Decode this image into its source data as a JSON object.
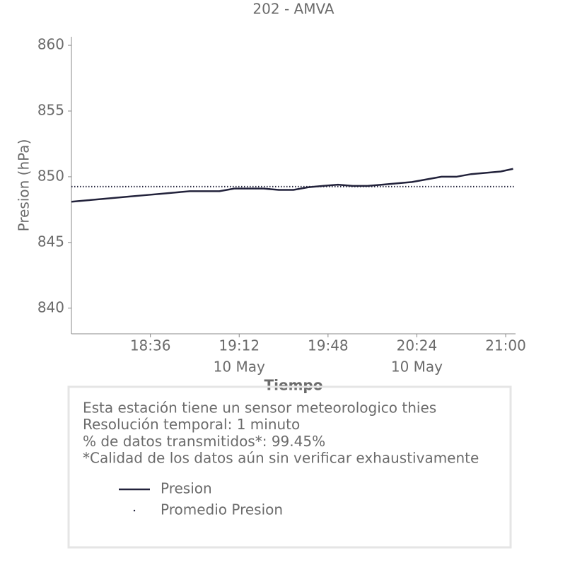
{
  "chart_data": {
    "type": "line",
    "title": "202 - AMVA",
    "xlabel": "Tiempo",
    "ylabel": "Presion (hPa)",
    "x": [
      "18:04",
      "18:10",
      "18:16",
      "18:22",
      "18:28",
      "18:34",
      "18:40",
      "18:46",
      "18:52",
      "18:58",
      "19:04",
      "19:10",
      "19:16",
      "19:22",
      "19:28",
      "19:34",
      "19:40",
      "19:46",
      "19:52",
      "19:58",
      "20:04",
      "20:10",
      "20:16",
      "20:22",
      "20:28",
      "20:34",
      "20:40",
      "20:46",
      "20:52",
      "20:58",
      "21:03"
    ],
    "series": [
      {
        "name": "Presion",
        "color": "#22223b",
        "values": [
          848.1,
          848.2,
          848.3,
          848.4,
          848.5,
          848.6,
          848.7,
          848.8,
          848.9,
          848.9,
          848.9,
          849.1,
          849.1,
          849.1,
          849.0,
          849.0,
          849.2,
          849.3,
          849.4,
          849.3,
          849.3,
          849.4,
          849.5,
          849.6,
          849.8,
          850.0,
          850.0,
          850.2,
          850.3,
          850.4,
          850.6
        ]
      },
      {
        "name": "Promedio Presion",
        "color": "#22223b",
        "value": 849.25
      }
    ],
    "xlim": [
      "18:04",
      "21:04"
    ],
    "xticks": [
      {
        "value": "18:36",
        "label": [
          "18:36"
        ]
      },
      {
        "value": "19:12",
        "label": [
          "19:12",
          "10 May"
        ]
      },
      {
        "value": "19:48",
        "label": [
          "19:48"
        ]
      },
      {
        "value": "20:24",
        "label": [
          "20:24",
          "10 May"
        ]
      },
      {
        "value": "21:00",
        "label": [
          "21:00"
        ]
      }
    ],
    "ylim": [
      838.05,
      860.65
    ],
    "yticks": [
      840,
      845,
      850,
      855,
      860
    ],
    "info": [
      "Esta estación tiene un sensor meteorologico thies",
      "Resolución temporal: 1 minuto",
      "% de datos transmitidos*: 99.45%",
      "*Calidad de los datos aún sin verificar exhaustivamente"
    ]
  }
}
